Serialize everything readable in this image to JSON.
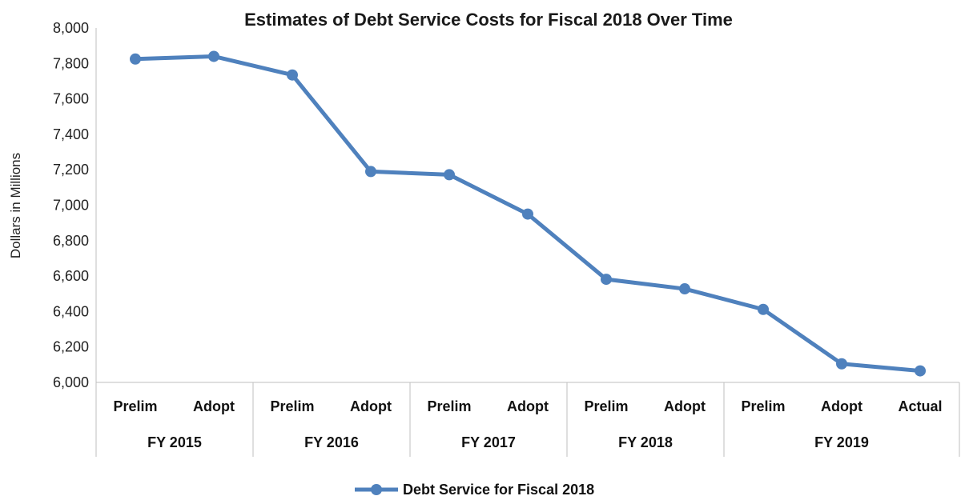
{
  "chart_data": {
    "type": "line",
    "title": "Estimates of Debt Service Costs for Fiscal 2018 Over Time",
    "ylabel": "Dollars in Millions",
    "ylim": [
      6000,
      8000
    ],
    "ytick_step": 200,
    "ytick_labels": [
      "6,000",
      "6,200",
      "6,400",
      "6,600",
      "6,800",
      "7,000",
      "7,200",
      "7,400",
      "7,600",
      "7,800",
      "8,000"
    ],
    "categories": [
      "Prelim",
      "Adopt",
      "Prelim",
      "Adopt",
      "Prelim",
      "Adopt",
      "Prelim",
      "Adopt",
      "Prelim",
      "Adopt",
      "Actual"
    ],
    "groups": [
      {
        "label": "FY 2015",
        "span": 2
      },
      {
        "label": "FY 2016",
        "span": 2
      },
      {
        "label": "FY 2017",
        "span": 2
      },
      {
        "label": "FY 2018",
        "span": 2
      },
      {
        "label": "FY 2019",
        "span": 3
      }
    ],
    "series": [
      {
        "name": "Debt Service for Fiscal 2018",
        "color": "#4f81bd",
        "values": [
          7825,
          7840,
          7735,
          7190,
          7172,
          6950,
          6582,
          6528,
          6412,
          6105,
          6065
        ]
      }
    ],
    "grid": false,
    "legend": "bottom-center"
  }
}
